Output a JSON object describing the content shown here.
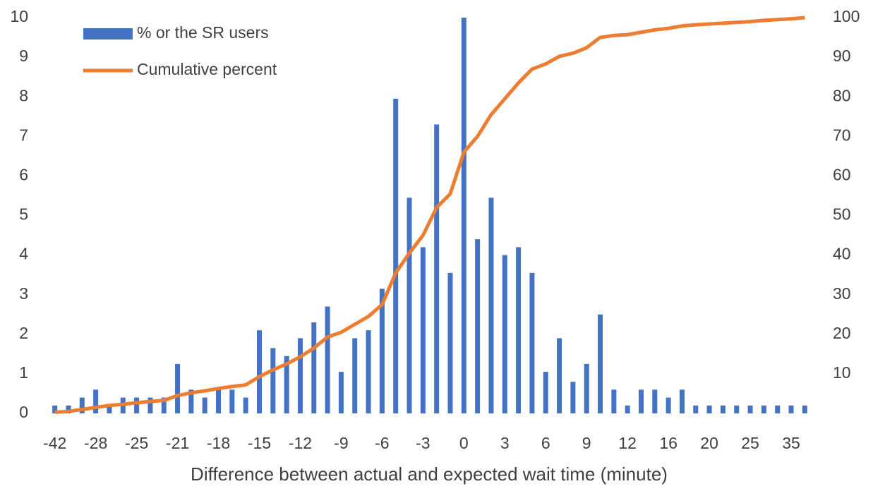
{
  "chart_data": {
    "type": "bar_line",
    "x_label": "Difference between actual and expected wait time (minute)",
    "categories": [
      "-42",
      null,
      null,
      "-28",
      null,
      null,
      "-25",
      null,
      null,
      "-21",
      null,
      null,
      "-18",
      null,
      null,
      "-15",
      null,
      null,
      "-12",
      null,
      null,
      "-9",
      null,
      null,
      "-6",
      null,
      null,
      "-3",
      null,
      null,
      "0",
      null,
      null,
      "3",
      null,
      null,
      "6",
      null,
      null,
      "9",
      null,
      null,
      "12",
      null,
      null,
      "16",
      null,
      null,
      "20",
      null,
      null,
      "25",
      null,
      null,
      "35",
      null
    ],
    "series": [
      {
        "name": "% or the SR users",
        "color": "#4472c4",
        "kind": "bar",
        "values": [
          0.2,
          0.2,
          0.4,
          0.6,
          0.2,
          0.4,
          0.4,
          0.4,
          0.4,
          1.25,
          0.6,
          0.4,
          0.6,
          0.6,
          0.4,
          2.1,
          1.65,
          1.45,
          1.9,
          2.3,
          2.7,
          1.05,
          1.9,
          2.1,
          3.15,
          7.95,
          5.45,
          4.2,
          7.3,
          3.55,
          10,
          4.4,
          5.45,
          4.0,
          4.2,
          3.55,
          1.05,
          1.9,
          0.8,
          1.25,
          2.5,
          0.6,
          0.2,
          0.6,
          0.6,
          0.4,
          0.6,
          0.2,
          0.2,
          0.2,
          0.2,
          0.2,
          0.2,
          0.2,
          0.2,
          0.2
        ]
      },
      {
        "name": "Cumulative percent",
        "color": "#ed7d31",
        "kind": "line",
        "axis": "y2",
        "values": [
          0.3,
          0.5,
          1,
          1.5,
          2,
          2.3,
          2.7,
          3,
          3.3,
          4.5,
          5.2,
          5.7,
          6.3,
          6.8,
          7.2,
          9.3,
          11,
          12.5,
          14.3,
          16.5,
          19.3,
          20.5,
          22.5,
          24.5,
          27.5,
          35.5,
          40.5,
          45,
          52,
          55.5,
          66,
          70,
          75.5,
          79.5,
          83.5,
          87,
          88.3,
          90.2,
          91,
          92.4,
          95,
          95.5,
          95.7,
          96.3,
          96.9,
          97.3,
          97.9,
          98.2,
          98.4,
          98.6,
          98.8,
          99,
          99.3,
          99.5,
          99.7,
          100
        ]
      }
    ],
    "ylim": [
      0,
      10
    ],
    "yticks": [
      0,
      1,
      2,
      3,
      4,
      5,
      6,
      7,
      8,
      9,
      10
    ],
    "y2lim": [
      0,
      100
    ],
    "y2ticks": [
      10,
      20,
      30,
      40,
      50,
      60,
      70,
      80,
      90,
      100
    ],
    "legend": "upper left",
    "grid": false
  }
}
